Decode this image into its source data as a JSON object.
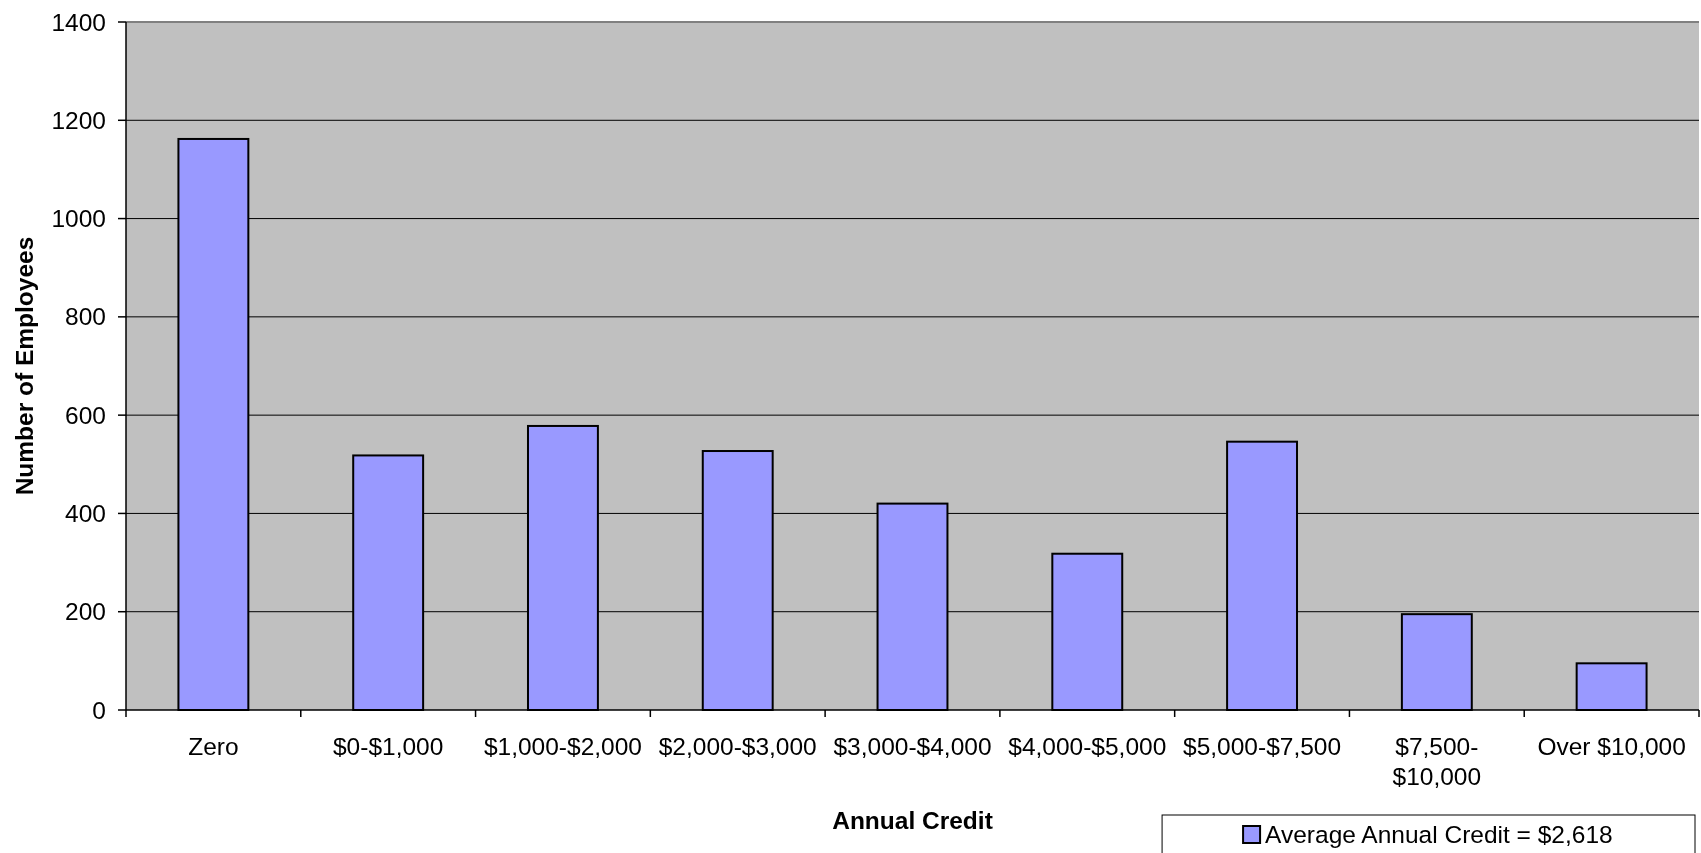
{
  "chart_data": {
    "type": "bar",
    "xlabel": "Annual Credit",
    "ylabel": "Number of Employees",
    "categories": [
      "Zero",
      "$0-$1,000",
      "$1,000-$2,000",
      "$2,000-$3,000",
      "$3,000-$4,000",
      "$4,000-$5,000",
      "$5,000-$7,500",
      "$7,500-$10,000",
      "Over $10,000"
    ],
    "series": [
      {
        "name": "Average Annual Credit = $2,618",
        "color": "#9999ff",
        "values": [
          1162,
          518,
          578,
          527,
          420,
          318,
          546,
          195,
          95
        ]
      }
    ],
    "ylim": [
      0,
      1400
    ],
    "yticks": [
      0,
      200,
      400,
      600,
      800,
      1000,
      1200,
      1400
    ],
    "grid": "y",
    "legend": "bottom right"
  }
}
